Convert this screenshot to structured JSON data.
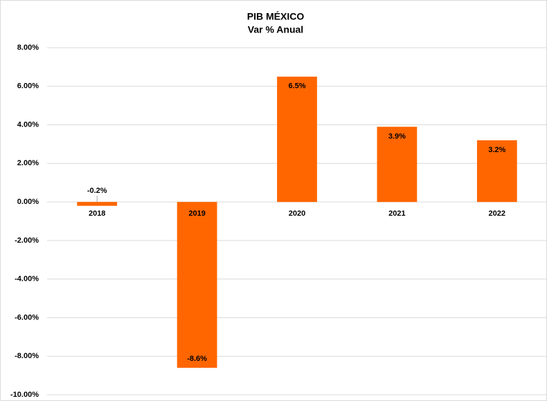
{
  "chart_data": {
    "type": "bar",
    "title": "PIB MÉXICO",
    "subtitle": "Var % Anual",
    "categories": [
      "2018",
      "2019",
      "2020",
      "2021",
      "2022"
    ],
    "values": [
      -0.2,
      -8.6,
      6.5,
      3.9,
      3.2
    ],
    "value_labels": [
      "-0.2%",
      "-8.6%",
      "6.5%",
      "3.9%",
      "3.2%"
    ],
    "color": "#ff6600",
    "ylim": [
      -10,
      8
    ],
    "yticks": [
      {
        "value": -10,
        "label": "-10.00%"
      },
      {
        "value": -8,
        "label": "-8.00%"
      },
      {
        "value": -6,
        "label": "-6.00%"
      },
      {
        "value": -4,
        "label": "-4.00%"
      },
      {
        "value": -2,
        "label": "-2.00%"
      },
      {
        "value": 0,
        "label": "0.00%"
      },
      {
        "value": 2,
        "label": "2.00%"
      },
      {
        "value": 4,
        "label": "4.00%"
      },
      {
        "value": 6,
        "label": "6.00%"
      },
      {
        "value": 8,
        "label": "8.00%"
      }
    ],
    "grid": true
  }
}
